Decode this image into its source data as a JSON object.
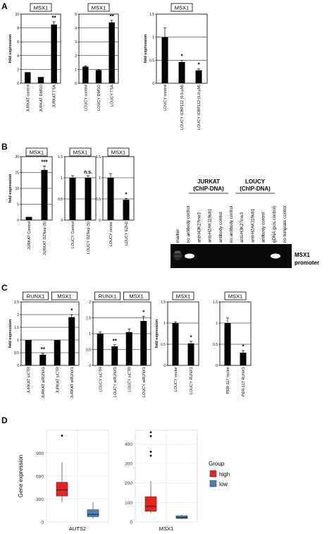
{
  "panel_labels": {
    "a": "A",
    "b": "B",
    "c": "C",
    "d": "D"
  },
  "shared": {
    "fold_expression": "fold expression"
  },
  "gel": {
    "group_jurkat": "JURKAT",
    "group_jurkat_sub": "(ChIP-DNA)",
    "group_loucy": "LOUCY",
    "group_loucy_sub": "(ChIP-DNA)",
    "lanes": [
      "marker",
      "no antibody control",
      "anti-H3K27me3",
      "anti-H2AK119ub1",
      "antibody control",
      "no antibody control",
      "anti-H3K27me3",
      "anti-H2AK119ub1",
      "antibody control",
      "gDNA (pos.control)",
      "no template control"
    ],
    "band_label_1": "MSX1",
    "band_label_2": "promoter"
  },
  "chart_data": [
    {
      "id": "a1",
      "type": "bar",
      "titles": [
        "MSX1"
      ],
      "categories": [
        "JURKAT control",
        "JURKAT DMSO",
        "JURKAT TSA"
      ],
      "values": [
        1.6,
        0.9,
        8.5
      ],
      "errors": [
        0,
        0,
        0.4
      ],
      "ylim": [
        0,
        10
      ],
      "yticks": [
        0,
        2,
        4,
        6,
        8,
        10
      ],
      "ylabel": "fold expression",
      "annotations": [
        {
          "index": 2,
          "text": "**"
        }
      ]
    },
    {
      "id": "a2",
      "type": "bar",
      "titles": [
        "MSX1"
      ],
      "categories": [
        "LOUCY control",
        "LOUCY DMSO",
        "LOUCY TSA"
      ],
      "values": [
        1.2,
        0.95,
        4.4
      ],
      "errors": [
        0.05,
        0.05,
        0.15
      ],
      "ylim": [
        0,
        5
      ],
      "yticks": [
        0,
        1,
        2,
        3,
        4,
        5
      ],
      "ylabel": "",
      "annotations": [
        {
          "index": 2,
          "text": "**"
        }
      ]
    },
    {
      "id": "a3",
      "type": "bar",
      "titles": [
        "MSX1"
      ],
      "categories": [
        "LOUCY control",
        "LOUCY ICBP112 (0.5 µM)",
        "LOUCY ICBP112 (5.0 µM)"
      ],
      "values": [
        1.0,
        0.46,
        0.28
      ],
      "errors": [
        0.2,
        0.04,
        0.03
      ],
      "ylim": [
        0,
        1.5
      ],
      "yticks": [
        0,
        0.5,
        1,
        1.5
      ],
      "ylabel": "fold expression",
      "annotations": [
        {
          "index": 1,
          "text": "*"
        },
        {
          "index": 2,
          "text": "*"
        }
      ]
    },
    {
      "id": "b1",
      "type": "bar",
      "titles": [
        "MSX1"
      ],
      "categories": [
        "JURKAT Control",
        "JURKAT DZNep (5)"
      ],
      "values": [
        1,
        15.8
      ],
      "errors": [
        0,
        1.2
      ],
      "ylim": [
        0,
        20
      ],
      "yticks": [
        0,
        5,
        10,
        15,
        20
      ],
      "ylabel": "fold expression",
      "annotations": [
        {
          "index": 1,
          "text": "***"
        }
      ]
    },
    {
      "id": "b2",
      "type": "bar",
      "titles": [
        "MSX1"
      ],
      "categories": [
        "LOUCY Control",
        "LOUCY DZNep (5)"
      ],
      "values": [
        1.0,
        1.0
      ],
      "errors": [
        0.05,
        0.05
      ],
      "ylim": [
        0,
        1.5
      ],
      "yticks": [
        0,
        0.5,
        1,
        1.5
      ],
      "ylabel": "",
      "annotations": [
        {
          "index": 1,
          "text": "n.s."
        }
      ]
    },
    {
      "id": "b3",
      "type": "bar",
      "titles": [
        "MSX1"
      ],
      "categories": [
        "LOUCY vector",
        "LOUCY EZH2"
      ],
      "values": [
        1.0,
        0.48
      ],
      "errors": [
        0.1,
        0.03
      ],
      "ylim": [
        0,
        1.5
      ],
      "yticks": [
        0,
        0.5,
        1,
        1.5
      ],
      "ylabel": "",
      "annotations": [
        {
          "index": 1,
          "text": "*"
        }
      ]
    },
    {
      "id": "c1",
      "type": "bar",
      "titles": [
        "RUNX1",
        "MSX1"
      ],
      "categories": [
        "JURKAT siCTR",
        "JURKAT siRUNX1",
        "JURKAT siCTR",
        "JURKAT siRUNX1"
      ],
      "values": [
        1.0,
        0.42,
        1.0,
        1.9
      ],
      "errors": [
        0,
        0.05,
        0,
        0.1
      ],
      "ylim": [
        0,
        2.5
      ],
      "yticks": [
        0,
        0.5,
        1,
        1.5,
        2,
        2.5
      ],
      "ylabel": "fold expression",
      "annotations": [
        {
          "index": 1,
          "text": "**"
        },
        {
          "index": 3,
          "text": "*"
        }
      ]
    },
    {
      "id": "c2",
      "type": "bar",
      "titles": [
        "RUNX1",
        "MSX1"
      ],
      "categories": [
        "LOUCY siCTR",
        "LOUCY siRUNX1",
        "LOUCY siCTR",
        "LOUCY siRUNX1"
      ],
      "values": [
        1.0,
        0.6,
        1.05,
        1.4
      ],
      "errors": [
        0.05,
        0.05,
        0.1,
        0.15
      ],
      "ylim": [
        0,
        2
      ],
      "yticks": [
        0,
        0.5,
        1,
        1.5,
        2
      ],
      "ylabel": "",
      "annotations": [
        {
          "index": 1,
          "text": "**"
        },
        {
          "index": 3,
          "text": "*"
        }
      ]
    },
    {
      "id": "c3",
      "type": "bar",
      "titles": [
        "MSX1"
      ],
      "categories": [
        "LOUCY vector",
        "LOUCY RUNX1"
      ],
      "values": [
        1.0,
        0.52
      ],
      "errors": [
        0.03,
        0.05
      ],
      "ylim": [
        0,
        1.5
      ],
      "yticks": [
        0,
        0.5,
        1,
        1.5
      ],
      "ylabel": "fold expression",
      "annotations": [
        {
          "index": 1,
          "text": "*"
        }
      ]
    },
    {
      "id": "c4",
      "type": "bar",
      "titles": [
        "MSX1"
      ],
      "categories": [
        "PER-117 vector",
        "PER-117 RUNX1"
      ],
      "values": [
        1.0,
        0.3
      ],
      "errors": [
        0.12,
        0.05
      ],
      "ylim": [
        0,
        1.5
      ],
      "yticks": [
        0,
        0.5,
        1,
        1.5
      ],
      "ylabel": "",
      "annotations": [
        {
          "index": 1,
          "text": "*"
        }
      ]
    },
    {
      "id": "d1",
      "type": "boxplot",
      "category": "AUTS2",
      "ylim": [
        0,
        1200
      ],
      "yticks": [
        0,
        300,
        600,
        900
      ],
      "ylabel": "Gene expression",
      "boxes": [
        {
          "group": "high",
          "min": 260,
          "q1": 340,
          "median": 420,
          "q3": 520,
          "max": 780,
          "outliers": [
            1130
          ]
        },
        {
          "group": "low",
          "min": 50,
          "q1": 70,
          "median": 100,
          "q3": 160,
          "max": 260,
          "outliers": []
        }
      ]
    },
    {
      "id": "d2",
      "type": "boxplot",
      "category": "MSX1",
      "ylim": [
        0,
        470
      ],
      "yticks": [
        0,
        100,
        200,
        300,
        400
      ],
      "ylabel": "",
      "boxes": [
        {
          "group": "high",
          "min": 45,
          "q1": 55,
          "median": 80,
          "q3": 130,
          "max": 210,
          "outliers": [
            340,
            360,
            440,
            460
          ]
        },
        {
          "group": "low",
          "min": 15,
          "q1": 18,
          "median": 23,
          "q3": 32,
          "max": 38,
          "outliers": []
        }
      ]
    }
  ],
  "legend": {
    "title": "Group",
    "items": [
      {
        "label": "high",
        "color": "#e8221e"
      },
      {
        "label": "low",
        "color": "#4a7fb5"
      }
    ]
  }
}
